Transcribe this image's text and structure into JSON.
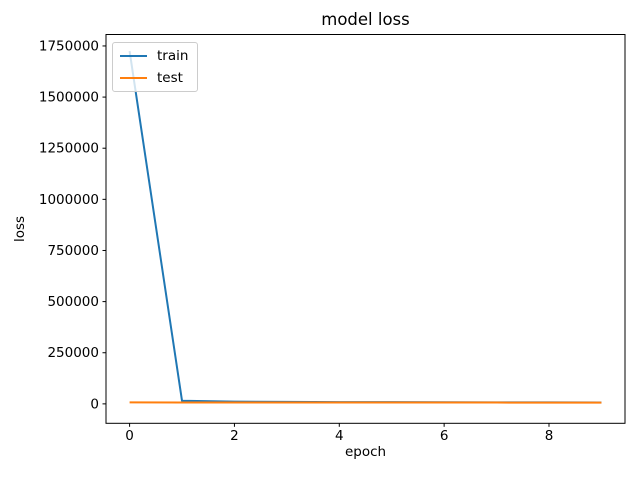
{
  "figure": {
    "background": "#ffffff"
  },
  "chart_data": {
    "type": "line",
    "title": "model loss",
    "xlabel": "epoch",
    "ylabel": "loss",
    "x": [
      0,
      1,
      2,
      3,
      4,
      5,
      6,
      7,
      8,
      9
    ],
    "series": [
      {
        "name": "train",
        "color": "#1f77b4",
        "values": [
          1725000,
          15000,
          11000,
          9500,
          8800,
          8300,
          7900,
          7600,
          7300,
          7000
        ]
      },
      {
        "name": "test",
        "color": "#ff7f0e",
        "values": [
          7200,
          7000,
          6900,
          6800,
          6700,
          6600,
          6500,
          6400,
          6300,
          6200
        ]
      }
    ],
    "xlim": [
      -0.45,
      9.45
    ],
    "ylim": [
      -95000,
      1806000
    ],
    "xticks": [
      0,
      2,
      4,
      6,
      8
    ],
    "yticks": [
      0,
      250000,
      500000,
      750000,
      1000000,
      1250000,
      1500000,
      1750000
    ],
    "grid": false,
    "legend": {
      "position": "upper left",
      "entries": [
        "train",
        "test"
      ]
    },
    "axis_color": "#000000",
    "text_color": "#000000"
  }
}
